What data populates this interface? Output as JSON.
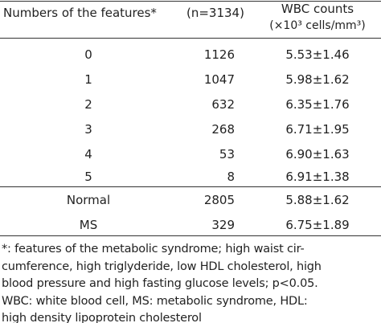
{
  "table": {
    "header": [
      "Numbers of the features*",
      "(n=3134)",
      "WBC counts"
    ],
    "header_unit": "(×10³ cells/mm³)",
    "rows": [
      [
        "0",
        "1126",
        "5.53±1.46"
      ],
      [
        "1",
        "1047",
        "5.98±1.62"
      ],
      [
        "2",
        "632",
        "6.35±1.76"
      ],
      [
        "3",
        "268",
        "6.71±1.95"
      ],
      [
        "4",
        "53",
        "6.90±1.63"
      ],
      [
        "5",
        "8",
        "6.91±1.38"
      ],
      [
        "Normal",
        "2805",
        "5.88±1.62"
      ],
      [
        "MS",
        "329",
        "6.75±1.89"
      ]
    ]
  },
  "footnote": [
    "*: features of the metabolic syndrome; high waist cir-",
    "cumference, high triglyderide, low HDL cholesterol, high",
    "blood pressure and high fasting glucose levels; p<0.05.",
    "WBC: white blood cell, MS: metabolic syndrome, HDL:",
    "high density lipoprotein cholesterol"
  ]
}
